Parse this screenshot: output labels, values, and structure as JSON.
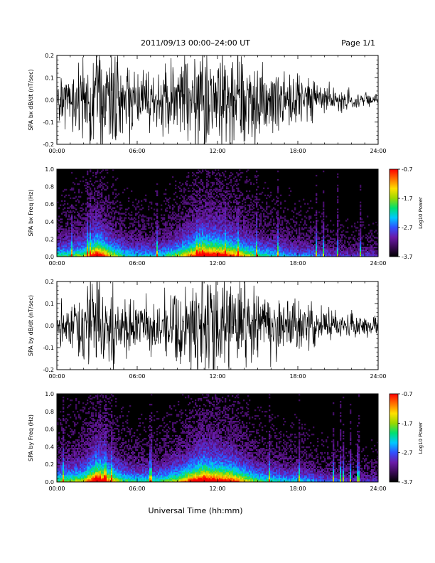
{
  "header": {
    "title": "2011/09/13  00:00–24:00 UT",
    "page": "Page 1/1"
  },
  "footer": {
    "xlabel": "Universal Time (hh:mm)"
  },
  "colors": {
    "waveform": "#000000",
    "spectrogram_background": "#000000",
    "colormap": [
      "#000000",
      "#3a0a55",
      "#6a1aa8",
      "#3050ff",
      "#00c8ff",
      "#00e070",
      "#9ad800",
      "#ffe000",
      "#ff7000",
      "#ff0000"
    ]
  },
  "chart_data": [
    {
      "type": "line",
      "ylabel": "SPA bx dB/dt (nT/sec)",
      "xlim": [
        0,
        24
      ],
      "ylim": [
        -0.2,
        0.2
      ],
      "xticks": [
        "00:00",
        "06:00",
        "12:00",
        "18:00",
        "24:00"
      ],
      "yticks": [
        "-0.2",
        "-0.1",
        "0.0",
        "0.1",
        "0.2"
      ],
      "envelope": {
        "x_hours": [
          0,
          1,
          2,
          3,
          4,
          5,
          6,
          7,
          8,
          9,
          10,
          11,
          12,
          13,
          14,
          15,
          16,
          17,
          18,
          19,
          20,
          21,
          22,
          23,
          24
        ],
        "amplitude": [
          0.12,
          0.13,
          0.16,
          0.22,
          0.21,
          0.15,
          0.12,
          0.11,
          0.12,
          0.14,
          0.2,
          0.22,
          0.22,
          0.2,
          0.17,
          0.15,
          0.13,
          0.11,
          0.1,
          0.09,
          0.06,
          0.05,
          0.045,
          0.04,
          0.035
        ]
      }
    },
    {
      "type": "heatmap",
      "ylabel": "SPA bx Freq (Hz)",
      "xlim": [
        0,
        24
      ],
      "ylim": [
        0.0,
        1.0
      ],
      "xticks": [
        "00:00",
        "06:00",
        "12:00",
        "18:00",
        "24:00"
      ],
      "yticks": [
        "0.0",
        "0.2",
        "0.4",
        "0.6",
        "0.8",
        "1.0"
      ],
      "colorbar": {
        "label": "Log10 Power",
        "range": [
          -3.7,
          -0.7
        ],
        "ticks": [
          "-0.7",
          "-1.7",
          "-2.7",
          "-3.7"
        ]
      },
      "activity": {
        "x_hours": [
          0,
          1,
          2,
          3,
          4,
          5,
          6,
          7,
          8,
          9,
          10,
          11,
          12,
          13,
          14,
          15,
          16,
          17,
          18,
          19,
          20,
          21,
          22,
          23,
          24
        ],
        "level": [
          0.4,
          0.45,
          0.5,
          0.9,
          0.6,
          0.4,
          0.35,
          0.35,
          0.4,
          0.5,
          0.7,
          0.9,
          0.85,
          0.75,
          0.6,
          0.45,
          0.4,
          0.35,
          0.3,
          0.3,
          0.25,
          0.2,
          0.2,
          0.2,
          0.2
        ]
      }
    },
    {
      "type": "line",
      "ylabel": "SPA by dB/dt (nT/sec)",
      "xlim": [
        0,
        24
      ],
      "ylim": [
        -0.2,
        0.2
      ],
      "xticks": [
        "00:00",
        "06:00",
        "12:00",
        "18:00",
        "24:00"
      ],
      "yticks": [
        "-0.2",
        "-0.1",
        "0.0",
        "0.1",
        "0.2"
      ],
      "envelope": {
        "x_hours": [
          0,
          1,
          2,
          3,
          4,
          5,
          6,
          7,
          8,
          9,
          10,
          11,
          12,
          13,
          14,
          15,
          16,
          17,
          18,
          19,
          20,
          21,
          22,
          23,
          24
        ],
        "amplitude": [
          0.08,
          0.09,
          0.15,
          0.22,
          0.2,
          0.14,
          0.1,
          0.1,
          0.12,
          0.15,
          0.19,
          0.22,
          0.21,
          0.2,
          0.17,
          0.14,
          0.13,
          0.12,
          0.1,
          0.09,
          0.07,
          0.055,
          0.05,
          0.045,
          0.04
        ]
      }
    },
    {
      "type": "heatmap",
      "ylabel": "SPA by Freq (Hz)",
      "xlim": [
        0,
        24
      ],
      "ylim": [
        0.0,
        1.0
      ],
      "xticks": [
        "00:00",
        "06:00",
        "12:00",
        "18:00",
        "24:00"
      ],
      "yticks": [
        "0.0",
        "0.2",
        "0.4",
        "0.6",
        "0.8",
        "1.0"
      ],
      "colorbar": {
        "label": "Log10 Power",
        "range": [
          -3.7,
          -0.7
        ],
        "ticks": [
          "-0.7",
          "-1.7",
          "-2.7",
          "-3.7"
        ]
      },
      "activity": {
        "x_hours": [
          0,
          1,
          2,
          3,
          4,
          5,
          6,
          7,
          8,
          9,
          10,
          11,
          12,
          13,
          14,
          15,
          16,
          17,
          18,
          19,
          20,
          21,
          22,
          23,
          24
        ],
        "level": [
          0.45,
          0.5,
          0.55,
          0.95,
          0.65,
          0.45,
          0.4,
          0.4,
          0.45,
          0.55,
          0.75,
          0.95,
          0.85,
          0.8,
          0.6,
          0.45,
          0.4,
          0.35,
          0.35,
          0.3,
          0.25,
          0.25,
          0.2,
          0.2,
          0.2
        ]
      }
    }
  ]
}
